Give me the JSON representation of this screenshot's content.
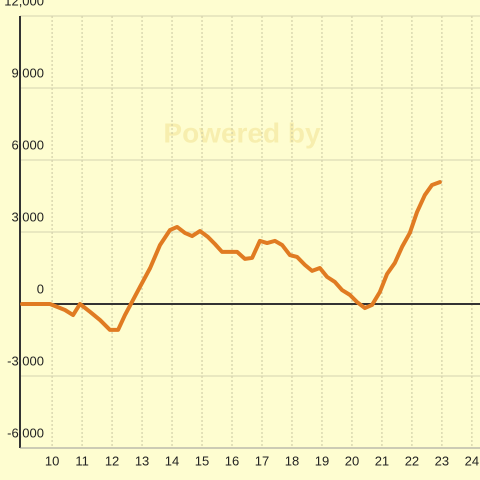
{
  "chart_data": {
    "type": "line",
    "watermark": "Powered by",
    "x": [
      9,
      9.93,
      10.43,
      10.7,
      10.93,
      11.27,
      11.6,
      11.93,
      12.2,
      12.43,
      12.7,
      12.93,
      13.27,
      13.6,
      13.93,
      14.17,
      14.43,
      14.67,
      14.93,
      15.2,
      15.43,
      15.67,
      16.17,
      16.43,
      16.67,
      16.93,
      17.17,
      17.43,
      17.67,
      17.93,
      18.17,
      18.43,
      18.67,
      18.93,
      19.17,
      19.43,
      19.67,
      19.93,
      20.17,
      20.43,
      20.67,
      20.93,
      21.17,
      21.43,
      21.67,
      21.93,
      22.17,
      22.43,
      22.67,
      22.93
    ],
    "series": [
      {
        "color": "#e07b22",
        "values": [
          0,
          0,
          -250,
          -460,
          0,
          -330,
          -670,
          -1080,
          -1080,
          -460,
          170,
          710,
          1500,
          2460,
          3080,
          3210,
          2960,
          2830,
          3040,
          2790,
          2500,
          2170,
          2170,
          1880,
          1920,
          2630,
          2540,
          2630,
          2460,
          2040,
          1960,
          1630,
          1380,
          1500,
          1130,
          920,
          580,
          380,
          80,
          -170,
          -40,
          500,
          1250,
          1710,
          2380,
          2960,
          3830,
          4540,
          4960,
          5080
        ]
      }
    ],
    "xlim": [
      8.93,
      24.27
    ],
    "xticks": [
      10,
      11,
      12,
      13,
      14,
      15,
      16,
      17,
      18,
      19,
      20,
      21,
      22,
      23,
      24
    ],
    "ylim": [
      -6000,
      12000
    ],
    "yticks": [
      {
        "value": -6000,
        "label": "-6,000"
      },
      {
        "value": -3000,
        "label": "-3,000"
      },
      0,
      {
        "value": 3000,
        "label": "3,000"
      },
      {
        "value": 6000,
        "label": "6,000"
      },
      {
        "value": 9000,
        "label": "9,000"
      },
      {
        "value": 12000,
        "label": "12,000"
      }
    ],
    "grid": true
  }
}
